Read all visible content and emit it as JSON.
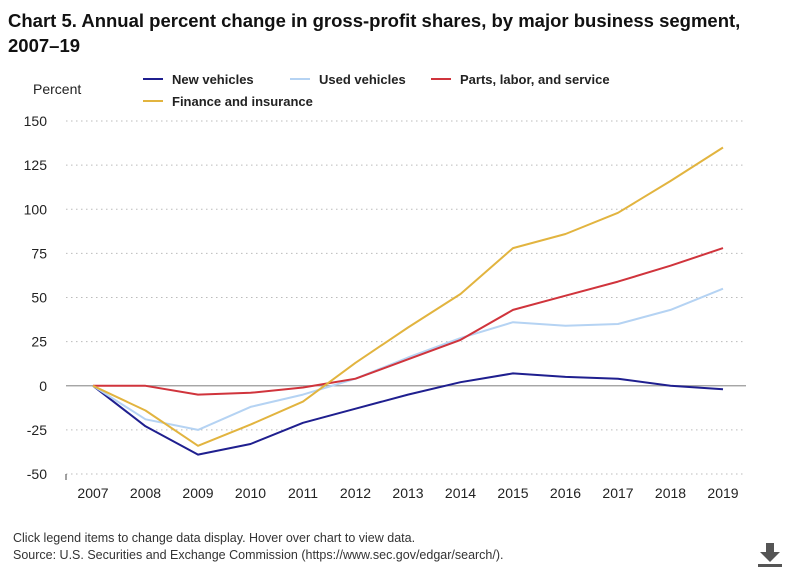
{
  "title": "Chart 5. Annual percent change in gross-profit shares, by major business segment, 2007–19",
  "notes": {
    "interaction": "Click legend items to change data display. Hover over chart to view data.",
    "source": "Source: U.S. Securities and Exchange Commission (https://www.sec.gov/edgar/search/)."
  },
  "download_icon": "download-icon",
  "chart_data": {
    "type": "line",
    "title": "Chart 5. Annual percent change in gross-profit shares, by major business segment, 2007–19",
    "xlabel": "",
    "ylabel": "Percent",
    "categories": [
      "2007",
      "2008",
      "2009",
      "2010",
      "2011",
      "2012",
      "2013",
      "2014",
      "2015",
      "2016",
      "2017",
      "2018",
      "2019"
    ],
    "ylim": [
      -50,
      150
    ],
    "yticks": [
      150,
      125,
      100,
      75,
      50,
      25,
      0,
      -25,
      -50
    ],
    "grid": "horizontal dotted",
    "legend_position": "top",
    "series": [
      {
        "name": "New vehicles",
        "color": "#1f1f8f",
        "values": [
          0,
          -23,
          -39,
          -33,
          -21,
          -13,
          -5,
          2,
          7,
          5,
          4,
          0,
          -2
        ]
      },
      {
        "name": "Used vehicles",
        "color": "#b5d3f3",
        "values": [
          0,
          -19,
          -25,
          -12,
          -5,
          4,
          16,
          27,
          36,
          34,
          35,
          43,
          55
        ]
      },
      {
        "name": "Parts, labor, and service",
        "color": "#d0343c",
        "values": [
          0,
          0,
          -5,
          -4,
          -1,
          4,
          15,
          26,
          43,
          51,
          59,
          68,
          78
        ]
      },
      {
        "name": "Finance and insurance",
        "color": "#e2b43f",
        "values": [
          0,
          -14,
          -34,
          -22,
          -9,
          13,
          33,
          52,
          78,
          86,
          98,
          116,
          135
        ]
      }
    ]
  }
}
